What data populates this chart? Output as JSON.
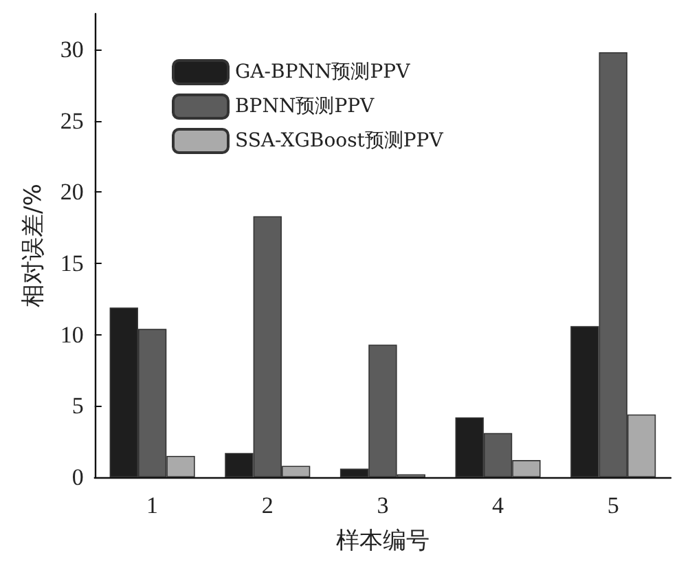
{
  "chart_data": {
    "type": "bar",
    "xlabel": "样本编号",
    "ylabel": "相对误差/%",
    "categories": [
      "1",
      "2",
      "3",
      "4",
      "5"
    ],
    "series": [
      {
        "name": "GA-BPNN预测PPV",
        "color": "#1e1e1e",
        "values": [
          11.9,
          1.7,
          0.6,
          4.2,
          10.6
        ]
      },
      {
        "name": "BPNN预测PPV",
        "color": "#5c5c5c",
        "values": [
          10.4,
          18.3,
          9.3,
          3.1,
          29.8
        ]
      },
      {
        "name": "SSA-XGBoost预测PPV",
        "color": "#aaaaaa",
        "values": [
          1.5,
          0.8,
          0.2,
          1.2,
          4.4
        ]
      }
    ],
    "ylim": [
      0,
      32.5
    ],
    "yticks": [
      0,
      5,
      10,
      15,
      20,
      25,
      30
    ],
    "grid": false,
    "legend": "top left"
  }
}
